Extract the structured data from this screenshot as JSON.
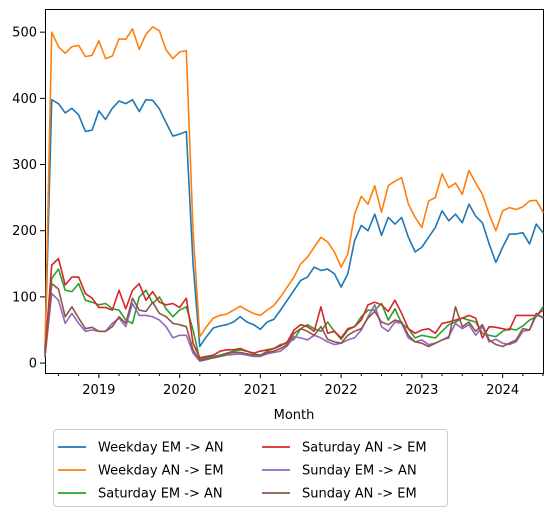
{
  "chart_data": {
    "type": "line",
    "title": "",
    "xlabel": "Month",
    "ylabel": "",
    "x_start": "2018-05",
    "x_end": "2024-07",
    "xlim": [
      "2018-05",
      "2024-07"
    ],
    "ylim": [
      -15,
      535
    ],
    "x_ticks": [
      "2019",
      "2020",
      "2021",
      "2022",
      "2023",
      "2024"
    ],
    "y_ticks": [
      "0",
      "100",
      "200",
      "300",
      "400",
      "500"
    ],
    "grid": false,
    "legend_position": "below-left",
    "series": [
      {
        "name": "Weekday EM -> AN",
        "color": "#1f77b4",
        "values": [
          20,
          398,
          392,
          378,
          385,
          375,
          350,
          352,
          381,
          368,
          385,
          396,
          392,
          398,
          380,
          398,
          397,
          384,
          363,
          343,
          346,
          350,
          150,
          25,
          40,
          53,
          56,
          58,
          62,
          70,
          62,
          58,
          51,
          62,
          66,
          80,
          95,
          110,
          125,
          130,
          145,
          140,
          142,
          135,
          115,
          135,
          185,
          208,
          200,
          225,
          193,
          220,
          210,
          220,
          190,
          168,
          175,
          190,
          205,
          230,
          215,
          225,
          212,
          240,
          222,
          212,
          180,
          152,
          175,
          195,
          195,
          197,
          180,
          210,
          197
        ]
      },
      {
        "name": "Weekday AN -> EM",
        "color": "#ff7f0e",
        "values": [
          20,
          500,
          478,
          468,
          478,
          480,
          463,
          465,
          487,
          460,
          464,
          490,
          489,
          505,
          474,
          497,
          508,
          502,
          473,
          460,
          470,
          472,
          200,
          40,
          55,
          68,
          72,
          74,
          80,
          86,
          80,
          75,
          72,
          80,
          87,
          100,
          115,
          130,
          150,
          160,
          175,
          190,
          183,
          168,
          145,
          165,
          225,
          252,
          240,
          268,
          228,
          268,
          275,
          280,
          240,
          220,
          205,
          245,
          250,
          286,
          265,
          272,
          255,
          291,
          272,
          255,
          225,
          200,
          230,
          235,
          232,
          236,
          245,
          246,
          228
        ]
      },
      {
        "name": "Saturday EM -> AN",
        "color": "#2ca02c",
        "values": [
          15,
          128,
          142,
          110,
          108,
          120,
          95,
          92,
          88,
          90,
          82,
          80,
          65,
          60,
          100,
          110,
          90,
          100,
          82,
          70,
          80,
          85,
          50,
          5,
          8,
          10,
          12,
          15,
          18,
          20,
          18,
          14,
          12,
          18,
          22,
          28,
          30,
          36,
          52,
          58,
          52,
          48,
          62,
          48,
          36,
          50,
          55,
          70,
          80,
          80,
          90,
          65,
          82,
          60,
          52,
          38,
          42,
          40,
          38,
          48,
          58,
          62,
          68,
          65,
          62,
          45,
          42,
          40,
          48,
          52,
          50,
          56,
          65,
          70,
          85
        ]
      },
      {
        "name": "Saturday AN -> EM",
        "color": "#d62728",
        "values": [
          15,
          148,
          158,
          118,
          130,
          130,
          105,
          98,
          84,
          84,
          80,
          110,
          82,
          110,
          120,
          95,
          108,
          92,
          88,
          90,
          84,
          98,
          30,
          8,
          10,
          12,
          18,
          20,
          20,
          22,
          18,
          15,
          18,
          20,
          22,
          26,
          32,
          50,
          58,
          55,
          48,
          85,
          45,
          48,
          38,
          52,
          55,
          65,
          88,
          92,
          88,
          78,
          95,
          75,
          52,
          45,
          50,
          52,
          45,
          60,
          62,
          65,
          68,
          72,
          68,
          38,
          55,
          54,
          52,
          50,
          72,
          72,
          72,
          72,
          80
        ]
      },
      {
        "name": "Sunday EM -> AN",
        "color": "#9467bd",
        "values": [
          10,
          105,
          95,
          60,
          75,
          60,
          48,
          50,
          48,
          48,
          60,
          68,
          55,
          90,
          72,
          72,
          70,
          65,
          55,
          38,
          42,
          42,
          15,
          3,
          5,
          8,
          10,
          12,
          13,
          14,
          12,
          10,
          10,
          14,
          16,
          18,
          26,
          40,
          38,
          35,
          42,
          38,
          32,
          28,
          30,
          35,
          38,
          50,
          70,
          88,
          55,
          48,
          62,
          60,
          38,
          32,
          35,
          28,
          30,
          35,
          40,
          60,
          52,
          58,
          42,
          55,
          32,
          36,
          30,
          28,
          32,
          48,
          50,
          72,
          70
        ]
      },
      {
        "name": "Sunday AN -> EM",
        "color": "#8c564b",
        "values": [
          10,
          120,
          112,
          70,
          85,
          68,
          52,
          54,
          48,
          48,
          55,
          70,
          60,
          98,
          80,
          78,
          92,
          75,
          70,
          60,
          58,
          55,
          20,
          4,
          6,
          8,
          10,
          14,
          16,
          16,
          14,
          12,
          12,
          16,
          18,
          22,
          28,
          45,
          52,
          48,
          42,
          55,
          36,
          32,
          30,
          42,
          48,
          52,
          68,
          78,
          62,
          58,
          65,
          62,
          42,
          32,
          30,
          25,
          30,
          35,
          38,
          85,
          55,
          62,
          48,
          58,
          35,
          28,
          25,
          30,
          35,
          52,
          50,
          75,
          68
        ]
      }
    ]
  }
}
